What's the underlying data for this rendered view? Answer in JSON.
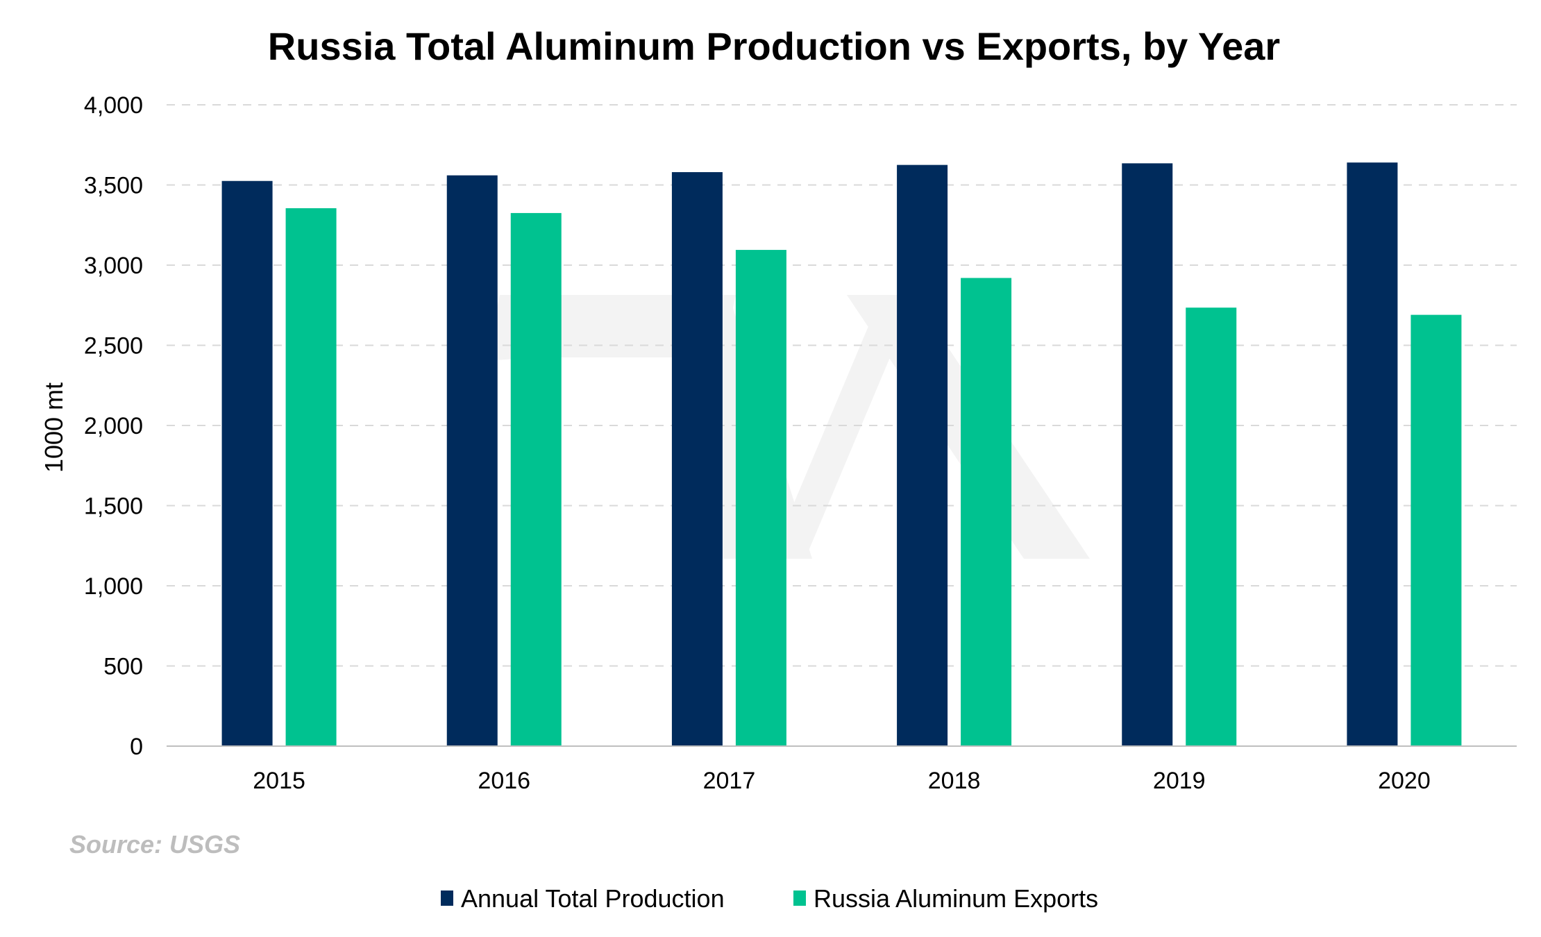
{
  "chart_data": {
    "type": "bar",
    "title": "Russia Total Aluminum Production vs Exports, by Year",
    "xlabel": "",
    "ylabel": "1000 mt",
    "categories": [
      "2015",
      "2016",
      "2017",
      "2018",
      "2019",
      "2020"
    ],
    "series": [
      {
        "name": "Annual Total Production",
        "color": "#002b5c",
        "values": [
          3525,
          3560,
          3580,
          3625,
          3635,
          3640
        ]
      },
      {
        "name": "Russia Aluminum Exports",
        "color": "#00c290",
        "values": [
          3355,
          3325,
          3095,
          2920,
          2735,
          2690
        ]
      }
    ],
    "ylim": [
      0,
      4000
    ],
    "yticks": [
      0,
      500,
      1000,
      1500,
      2000,
      2500,
      3000,
      3500,
      4000
    ],
    "ytick_labels": [
      "0",
      "500",
      "1,000",
      "1,500",
      "2,000",
      "2,500",
      "3,000",
      "3,500",
      "4,000"
    ],
    "grid": true,
    "legend_position": "bottom-center",
    "source": "Source: USGS"
  }
}
